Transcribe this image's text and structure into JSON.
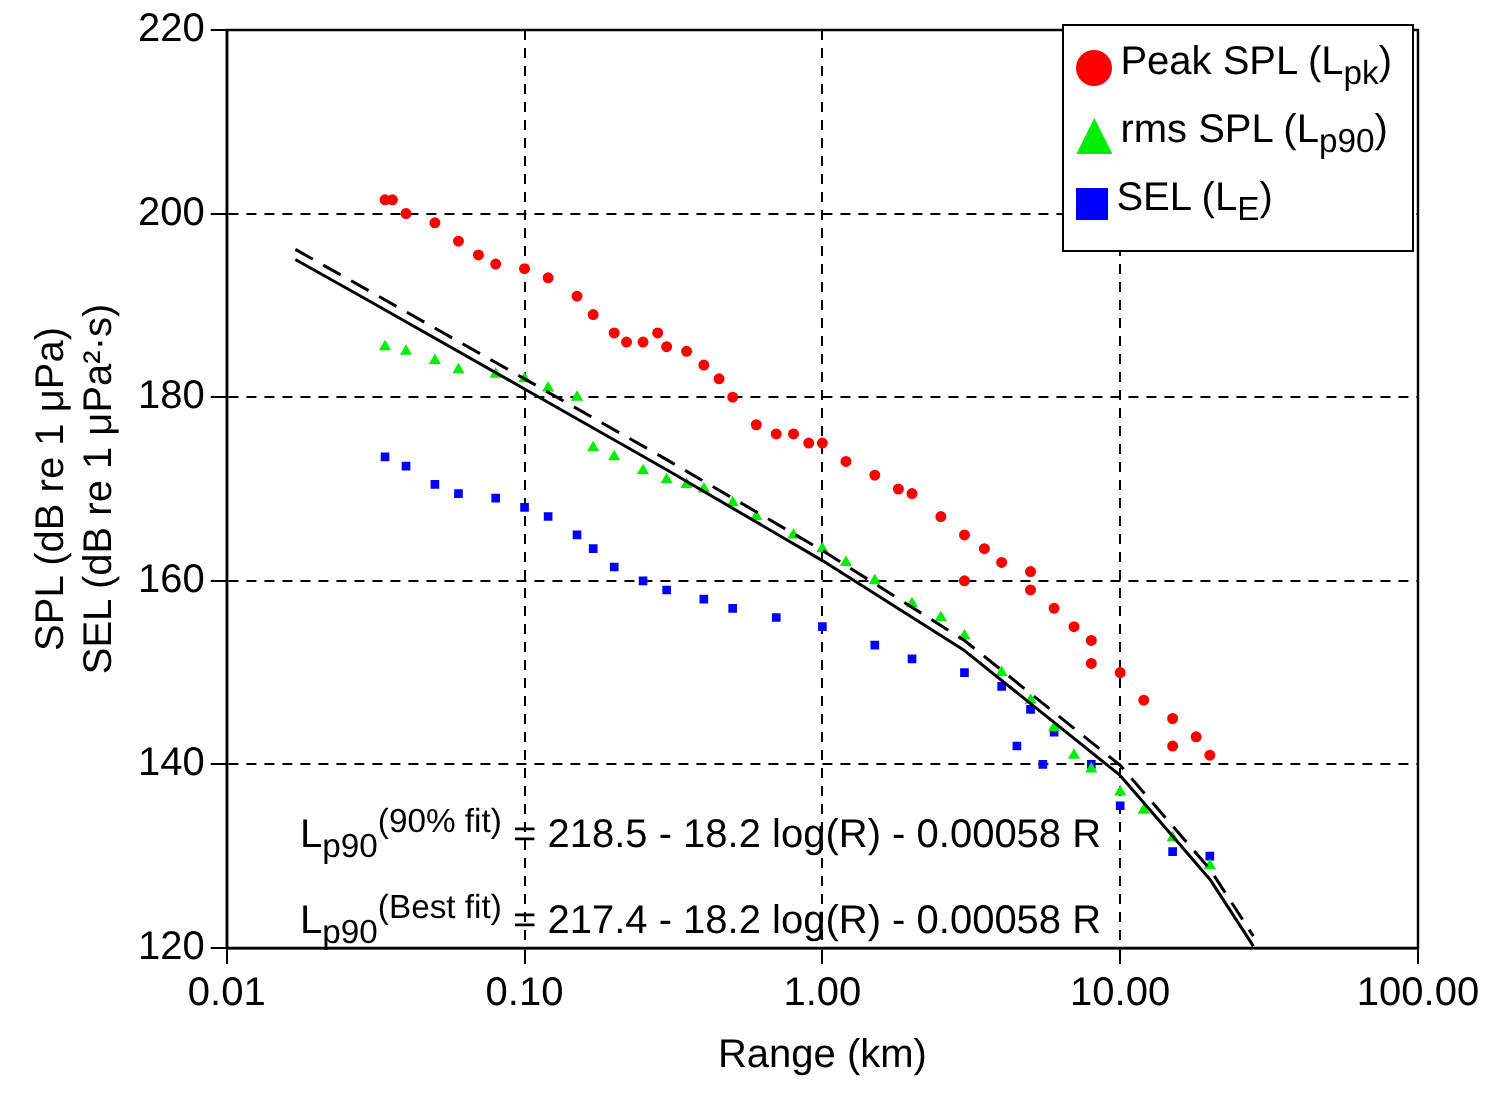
{
  "chart_data": {
    "type": "scatter",
    "xlabel": "Range (km)",
    "ylabel": "SPL (dB re 1 μPa)\nSEL (dB re 1 μPa²·s)",
    "log": "x",
    "xlim": [
      0.01,
      100
    ],
    "xticks": [
      {
        "value": 0.01,
        "label": "0.01"
      },
      {
        "value": 0.1,
        "label": "0.10"
      },
      {
        "value": 1,
        "label": "1.00"
      },
      {
        "value": 10,
        "label": "10.00"
      },
      {
        "value": 100,
        "label": "100.00"
      }
    ],
    "ylim": [
      120,
      220
    ],
    "yticks": [
      120,
      140,
      160,
      180,
      200,
      220
    ],
    "grid": true,
    "legend": "top right",
    "annotations": [
      "L$_{p90}$$^{(90% fit)}$ = 218.5 - 18.2 log(R) - 0.00058 R",
      "L$_{p90}$$^{(Best fit)}$ = 217.4 - 18.2 log(R) - 0.00058 R"
    ],
    "series": [
      {
        "name": "Peak SPL (L$_{pk}$)",
        "type": "scatter",
        "marker": "circle",
        "color": "#ff0000",
        "x": [
          0.034,
          0.036,
          0.04,
          0.05,
          0.06,
          0.07,
          0.08,
          0.1,
          0.12,
          0.15,
          0.17,
          0.2,
          0.22,
          0.25,
          0.28,
          0.3,
          0.35,
          0.4,
          0.45,
          0.5,
          0.6,
          0.7,
          0.8,
          0.9,
          1,
          1.2,
          1.5,
          1.8,
          2,
          2.5,
          3,
          3.5,
          4,
          5,
          6,
          7,
          8,
          10,
          12,
          15,
          18,
          20,
          3,
          5,
          8,
          15
        ],
        "values": [
          201.5,
          201.5,
          200,
          199,
          197,
          195.5,
          194.5,
          194,
          193,
          191,
          189,
          187,
          186,
          186,
          187,
          185.5,
          185,
          183.5,
          182,
          180,
          177,
          176,
          176,
          175,
          175,
          173,
          171.5,
          170,
          169.5,
          167,
          165,
          163.5,
          162,
          159,
          157,
          155,
          153.5,
          150,
          147,
          145,
          143,
          141,
          160,
          161,
          151,
          142
        ]
      },
      {
        "name": "rms SPL (L$_{p90}$)",
        "type": "scatter",
        "marker": "triangle",
        "color": "#00ee00",
        "x": [
          0.034,
          0.04,
          0.05,
          0.06,
          0.08,
          0.1,
          0.12,
          0.15,
          0.17,
          0.2,
          0.25,
          0.3,
          0.35,
          0.4,
          0.5,
          0.6,
          0.8,
          1,
          1.2,
          1.5,
          2,
          2.5,
          3,
          4,
          5,
          6,
          7,
          8,
          10,
          12,
          15,
          20
        ],
        "values": [
          185.5,
          185,
          184,
          183,
          182.5,
          182,
          181,
          180,
          174.5,
          173.5,
          172,
          171,
          170.5,
          170,
          168.5,
          167,
          165,
          163.5,
          162,
          160,
          157.5,
          156,
          154,
          150,
          147,
          144,
          141,
          139.5,
          137,
          135,
          132,
          129
        ]
      },
      {
        "name": "SEL (L$_{E}$)",
        "type": "scatter",
        "marker": "square",
        "color": "#0000ff",
        "x": [
          0.034,
          0.04,
          0.05,
          0.06,
          0.08,
          0.1,
          0.12,
          0.15,
          0.17,
          0.2,
          0.25,
          0.3,
          0.4,
          0.5,
          0.7,
          1,
          1.5,
          2,
          3,
          4,
          4.5,
          5,
          5.5,
          6,
          8,
          10,
          15,
          20
        ],
        "values": [
          173.5,
          172.5,
          170.5,
          169.5,
          169,
          168,
          167,
          165,
          163.5,
          161.5,
          160,
          159,
          158,
          157,
          156,
          155,
          153,
          151.5,
          150,
          148.5,
          142,
          146,
          140,
          143.5,
          140,
          135.5,
          130.5,
          130
        ]
      },
      {
        "type": "line",
        "marker": "none",
        "line_style": "dashed",
        "color": "#000000",
        "x": [
          0.017,
          0.03,
          0.1,
          0.3,
          1,
          3,
          10,
          20,
          28
        ],
        "values": [
          196.1,
          191.6,
          182,
          173.2,
          163.3,
          153.5,
          139.9,
          128.6,
          121.3
        ]
      },
      {
        "type": "line",
        "marker": "none",
        "line_style": "solid",
        "color": "#000000",
        "x": [
          0.017,
          0.03,
          0.1,
          0.3,
          1,
          3,
          10,
          20,
          28
        ],
        "values": [
          195,
          190.5,
          180.9,
          172.1,
          162.2,
          152.4,
          138.8,
          127.5,
          120.2
        ]
      }
    ]
  }
}
